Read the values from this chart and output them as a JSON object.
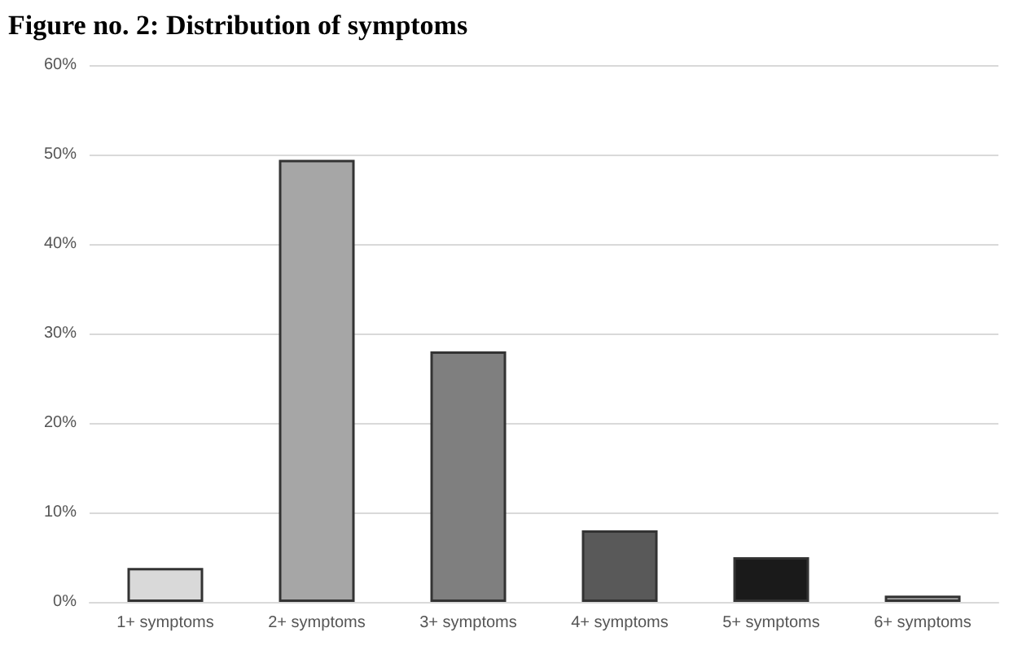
{
  "chart_data": {
    "type": "bar",
    "title": "Figure no. 2: Distribution of symptoms",
    "categories": [
      "1+ symptoms",
      "2+ symptoms",
      "3+ symptoms",
      "4+ symptoms",
      "5+ symptoms",
      "6+ symptoms"
    ],
    "values": [
      3.8,
      49.4,
      28.0,
      8.0,
      5.0,
      0.7
    ],
    "colors": [
      "#d9d9d9",
      "#a6a6a6",
      "#7f7f7f",
      "#595959",
      "#1a1a1a",
      "#a6a6a6"
    ],
    "ylim": [
      0,
      60
    ],
    "yticks": [
      {
        "value": 0,
        "label": "0%"
      },
      {
        "value": 10,
        "label": "10%"
      },
      {
        "value": 20,
        "label": "20%"
      },
      {
        "value": 30,
        "label": "30%"
      },
      {
        "value": 40,
        "label": "40%"
      },
      {
        "value": 50,
        "label": "50%"
      },
      {
        "value": 60,
        "label": "60%"
      }
    ],
    "grid": "y"
  }
}
